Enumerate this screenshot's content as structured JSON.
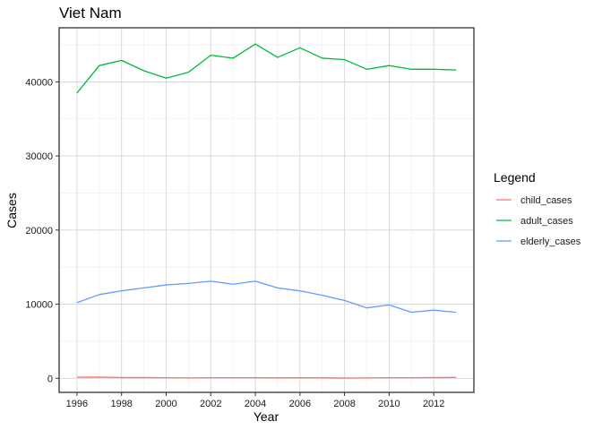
{
  "chart_data": {
    "type": "line",
    "title": "Viet Nam",
    "xlabel": "Year",
    "ylabel": "Cases",
    "xlim": [
      1995.2,
      2013.8
    ],
    "ylim": [
      -1900,
      47300
    ],
    "x_ticks": [
      1996,
      1998,
      2000,
      2002,
      2004,
      2006,
      2008,
      2010,
      2012
    ],
    "y_ticks": [
      0,
      10000,
      20000,
      30000,
      40000
    ],
    "y_tick_labels": [
      "0",
      "10000",
      "20000",
      "30000",
      "40000"
    ],
    "grid": true,
    "legend": {
      "title": "Legend",
      "position": "right"
    },
    "x": [
      1996,
      1997,
      1998,
      1999,
      2000,
      2001,
      2002,
      2003,
      2004,
      2005,
      2006,
      2007,
      2008,
      2009,
      2010,
      2011,
      2012,
      2013
    ],
    "series": [
      {
        "name": "child_cases",
        "color": "#F8766D",
        "values": [
          150,
          160,
          100,
          100,
          80,
          50,
          80,
          80,
          80,
          60,
          70,
          60,
          40,
          50,
          80,
          80,
          100,
          120
        ]
      },
      {
        "name": "adult_cases",
        "color": "#00BA38",
        "values": [
          38500,
          42200,
          42900,
          41500,
          40500,
          41300,
          43600,
          43200,
          45100,
          43300,
          44600,
          43200,
          43000,
          41700,
          42200,
          41700,
          41700,
          41600
        ]
      },
      {
        "name": "elderly_cases",
        "color": "#619CFF",
        "values": [
          10200,
          11300,
          11800,
          12200,
          12600,
          12800,
          13100,
          12700,
          13100,
          12200,
          11800,
          11200,
          10500,
          9500,
          9900,
          8900,
          9200,
          8900
        ]
      }
    ]
  }
}
